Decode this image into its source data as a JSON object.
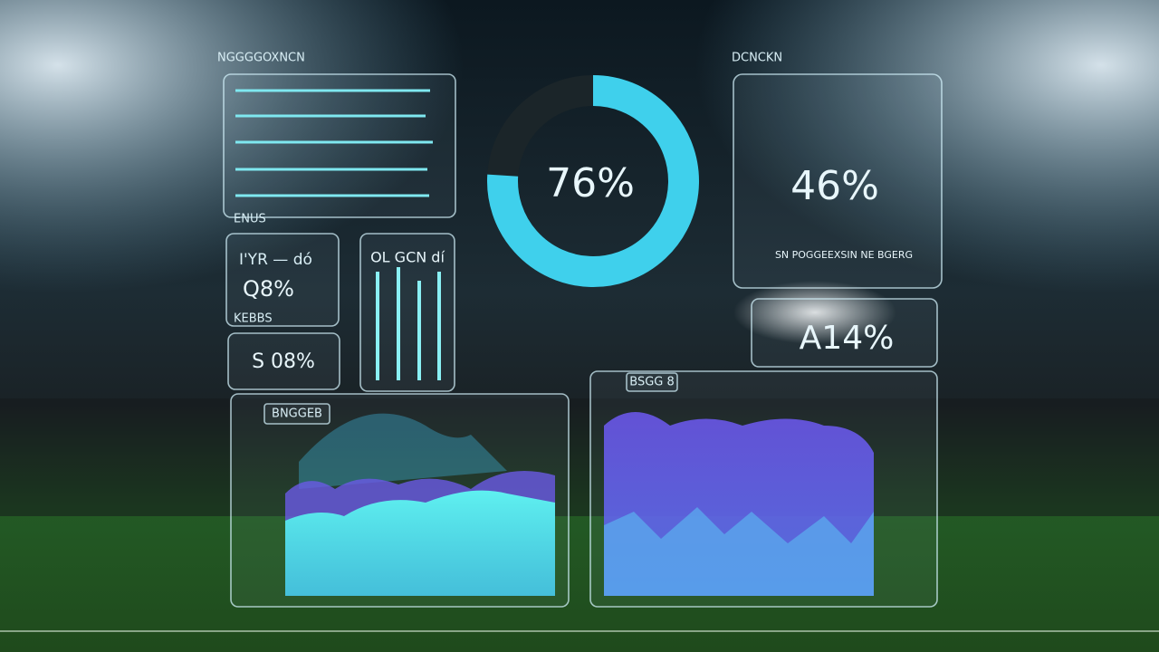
{
  "left_title": "NGGGGOXNCN",
  "right_title": "DCNCKN",
  "donut": {
    "label": "76%",
    "value": 76
  },
  "stat_card": {
    "value": "46%",
    "caption": "SN POGGEEXSIN NE BGERG"
  },
  "glow_card": {
    "value": "A14%"
  },
  "small_labels": {
    "section": "ENUS",
    "card_heading": "I'YR — dó",
    "card_value": "Q8%",
    "card_footer": "KEBBS",
    "second_value": "S 08%",
    "bars_heading": "OL GCN dí"
  },
  "left_chart_tag": "BNGGEB",
  "right_chart_tag": "BSGG 8"
}
